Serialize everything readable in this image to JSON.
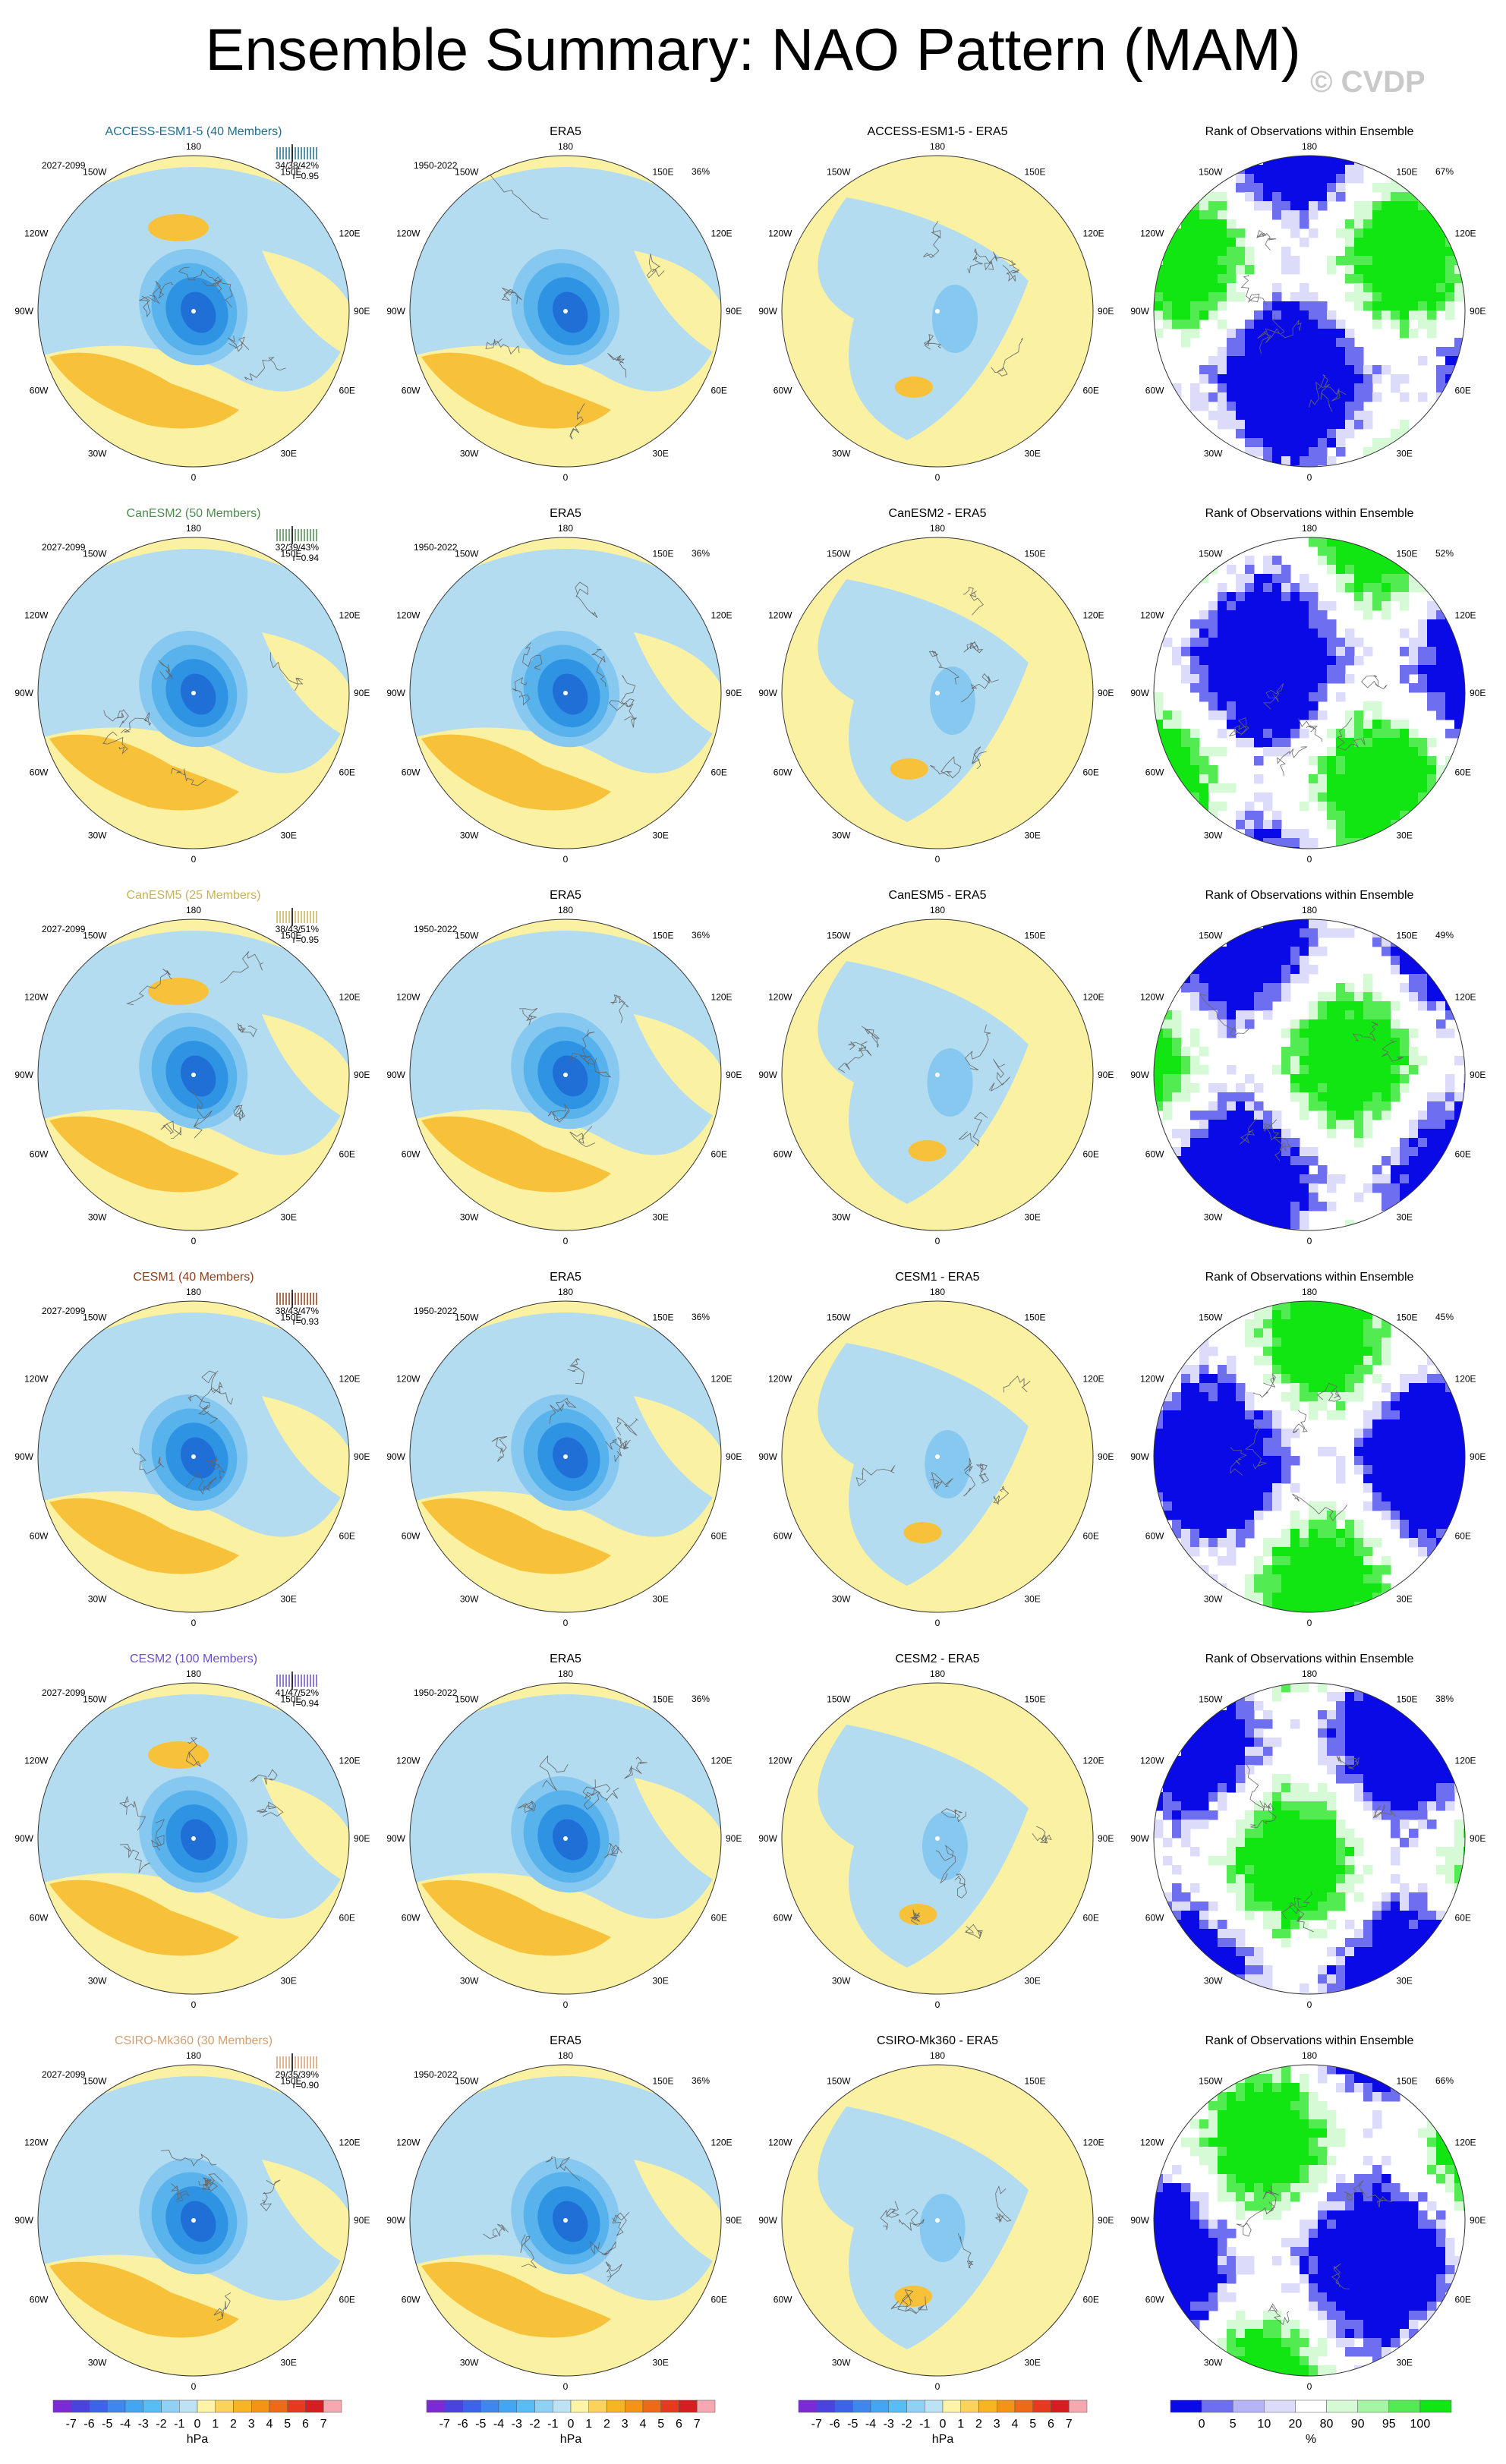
{
  "title": "Ensemble Summary: NAO Pattern (MAM)",
  "watermark": "© CVDP",
  "direction_labels": {
    "top": "180",
    "tl": "150W",
    "tr": "150E",
    "ul": "120W",
    "ur": "120E",
    "l": "90W",
    "r": "90E",
    "ll": "60W",
    "lr": "60E",
    "bl": "30W",
    "br": "30E",
    "bottom": "0"
  },
  "obs_period": "1950-2022",
  "obs_label": "ERA5",
  "rank_title": "Rank of Observations within Ensemble",
  "rows": [
    {
      "model": "ACCESS-ESM1-5 (40 Members)",
      "model_short": "ACCESS-ESM1-5",
      "color": "#1f6f8b",
      "period": "2027-2099",
      "stats": "34/38/42%",
      "corr": "r=0.95",
      "obs_pct": "36%",
      "rank_pct": "67%"
    },
    {
      "model": "CanESM2 (50 Members)",
      "model_short": "CanESM2",
      "color": "#4e8a4e",
      "period": "2027-2099",
      "stats": "32/39/43%",
      "corr": "r=0.94",
      "obs_pct": "36%",
      "rank_pct": "52%"
    },
    {
      "model": "CanESM5 (25 Members)",
      "model_short": "CanESM5",
      "color": "#c8b25a",
      "period": "2027-2099",
      "stats": "38/43/51%",
      "corr": "r=0.95",
      "obs_pct": "36%",
      "rank_pct": "49%"
    },
    {
      "model": "CESM1 (40 Members)",
      "model_short": "CESM1",
      "color": "#8b3f1a",
      "period": "2027-2099",
      "stats": "38/43/47%",
      "corr": "r=0.93",
      "obs_pct": "36%",
      "rank_pct": "45%"
    },
    {
      "model": "CESM2 (100 Members)",
      "model_short": "CESM2",
      "color": "#6a4fc8",
      "period": "2027-2099",
      "stats": "41/47/52%",
      "corr": "r=0.94",
      "obs_pct": "36%",
      "rank_pct": "38%"
    },
    {
      "model": "CSIRO-Mk360 (30 Members)",
      "model_short": "CSIRO-Mk360",
      "color": "#d2a072",
      "period": "2027-2099",
      "stats": "29/35/39%",
      "corr": "r=0.90",
      "obs_pct": "36%",
      "rank_pct": "66%"
    }
  ],
  "colorbar_hpa": {
    "labels": [
      "-7",
      "-6",
      "-5",
      "-4",
      "-3",
      "-2",
      "-1",
      "0",
      "1",
      "2",
      "3",
      "4",
      "5",
      "6",
      "7"
    ],
    "colors": [
      "#7b2ad6",
      "#4a43e0",
      "#3d63ea",
      "#3f86ef",
      "#43a6f2",
      "#58bdf4",
      "#8fd0f4",
      "#bde2f4",
      "#fdf4a8",
      "#fbd35a",
      "#f8b523",
      "#f49315",
      "#ee6a17",
      "#e53a1e",
      "#d51e22",
      "#f5a8b0"
    ],
    "unit": "hPa"
  },
  "colorbar_rank": {
    "labels": [
      "0",
      "5",
      "10",
      "20",
      "80",
      "90",
      "95",
      "100"
    ],
    "colors": [
      "#0a0ae6",
      "#6e6ef0",
      "#b4b4f6",
      "#dcdcfa",
      "#ffffff",
      "#d6fad6",
      "#a5f5a5",
      "#52ec52",
      "#12e612"
    ],
    "unit": "%"
  },
  "chart_data": {
    "type": "heatmap",
    "description_of_grid": "6 rows x 4 polar stereographic maps of NAO SLP regression",
    "columns": [
      "Ensemble mean pattern",
      "ERA5 observations",
      "Ensemble minus ERA5",
      "Rank of Observations within Ensemble"
    ],
    "value_range_hpa": [
      -7,
      7
    ],
    "rank_range_pct": [
      0,
      100
    ]
  }
}
